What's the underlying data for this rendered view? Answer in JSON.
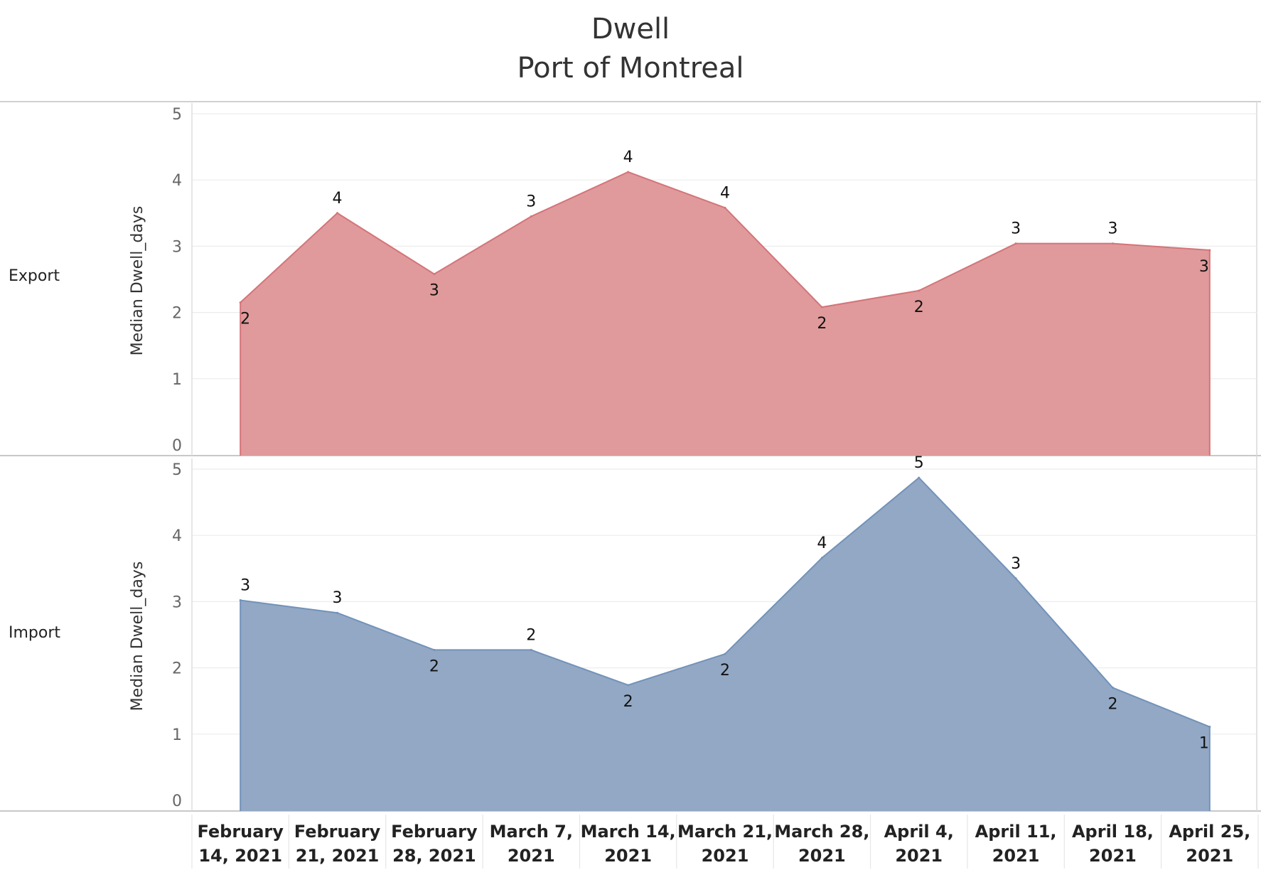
{
  "title": "Dwell",
  "subtitle": "Port of Montreal",
  "chart_data": {
    "type": "area",
    "x": [
      "February 14, 2021",
      "February 21, 2021",
      "February 28, 2021",
      "March 7, 2021",
      "March 14, 2021",
      "March 21, 2021",
      "March 28, 2021",
      "April 4, 2021",
      "April 11, 2021",
      "April 18, 2021",
      "April 25, 2021"
    ],
    "x_tick_labels": [
      [
        "February",
        "14, 2021"
      ],
      [
        "February",
        "21, 2021"
      ],
      [
        "February",
        "28, 2021"
      ],
      [
        "March 7,",
        "2021"
      ],
      [
        "March 14,",
        "2021"
      ],
      [
        "March 21,",
        "2021"
      ],
      [
        "March 28,",
        "2021"
      ],
      [
        "April 4,",
        "2021"
      ],
      [
        "April 11,",
        "2021"
      ],
      [
        "April 18,",
        "2021"
      ],
      [
        "April 25,",
        "2021"
      ]
    ],
    "ylim": [
      0,
      5
    ],
    "yticks": [
      0,
      1,
      2,
      3,
      4,
      5
    ],
    "ylabel": "Median Dwell_days",
    "grid": true,
    "panels": [
      {
        "name": "Export",
        "color": "#e09a9b",
        "line_color": "#d47479",
        "values": [
          2.15,
          3.5,
          2.58,
          3.45,
          4.12,
          3.58,
          2.08,
          2.33,
          3.04,
          3.04,
          2.94
        ],
        "labels": [
          "2",
          "4",
          "3",
          "3",
          "4",
          "4",
          "2",
          "2",
          "3",
          "3",
          "3"
        ],
        "label_pos": [
          "below",
          "above",
          "below",
          "above",
          "above",
          "above",
          "below",
          "below",
          "above",
          "above",
          "below"
        ]
      },
      {
        "name": "Import",
        "color": "#92a8c4",
        "line_color": "#7292b9",
        "values": [
          3.02,
          2.83,
          2.27,
          2.27,
          1.74,
          2.21,
          3.66,
          4.87,
          3.35,
          1.7,
          1.11
        ],
        "labels": [
          "3",
          "3",
          "2",
          "2",
          "2",
          "2",
          "4",
          "5",
          "3",
          "2",
          "1"
        ],
        "label_pos": [
          "above",
          "above",
          "below",
          "above",
          "below",
          "below",
          "above",
          "above",
          "above",
          "below",
          "below"
        ]
      }
    ]
  }
}
